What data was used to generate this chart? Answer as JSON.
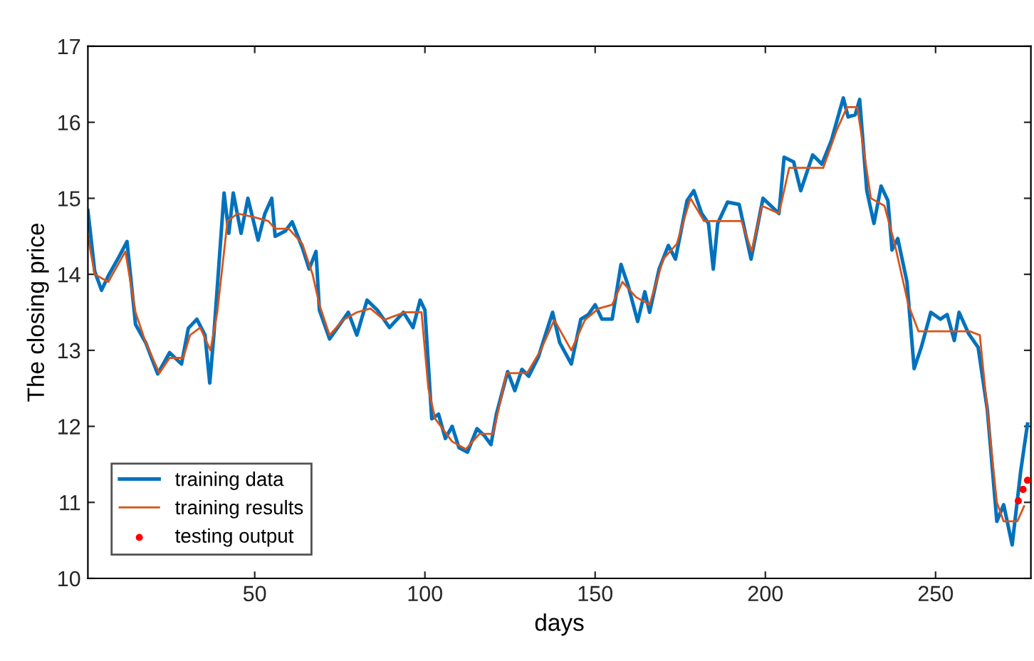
{
  "chart_data": {
    "type": "line",
    "xlabel": "days",
    "ylabel": "The closing price",
    "xlim": [
      1,
      278
    ],
    "ylim": [
      10,
      17
    ],
    "xticks": [
      50,
      100,
      150,
      200,
      250
    ],
    "yticks": [
      10,
      11,
      12,
      13,
      14,
      15,
      16,
      17
    ],
    "grid": false,
    "legend": "bottom left",
    "series": [
      {
        "name": "training data",
        "color": "#0072bd",
        "x": [
          1,
          3,
          5,
          7,
          10,
          12.5,
          15,
          18,
          21.5,
          25,
          28.5,
          30.5,
          33,
          35.4,
          36.8,
          38,
          41,
          42.4,
          43.7,
          46,
          48,
          51,
          53,
          55,
          56,
          59,
          61,
          64,
          66,
          68,
          69,
          72,
          75,
          77.5,
          80,
          83,
          86,
          89.6,
          93.7,
          96.5,
          98.6,
          100,
          102,
          104,
          106,
          108,
          110,
          112.5,
          115.3,
          117.4,
          119.4,
          121,
          124.3,
          126.4,
          128.5,
          130.5,
          133.3,
          137.5,
          139.6,
          143,
          145.8,
          148,
          150,
          152,
          155,
          157.6,
          159.7,
          162.5,
          164.6,
          166,
          168.8,
          171.5,
          173.6,
          177,
          179,
          181.3,
          183.3,
          184.7,
          186,
          188.9,
          192.3,
          195.8,
          199.3,
          204,
          205.5,
          208.3,
          210.4,
          213.9,
          216.6,
          219.4,
          222.9,
          224.3,
          226.4,
          227.7,
          229.8,
          231.9,
          234,
          236,
          237.2,
          238.9,
          241.6,
          243.7,
          245.8,
          248.6,
          251.4,
          253.4,
          255.5,
          256.9,
          259.7,
          262.5,
          265.2,
          268,
          270,
          272.5,
          275,
          277
        ],
        "values": [
          14.84,
          14.04,
          13.79,
          13.98,
          14.22,
          14.43,
          13.34,
          13.1,
          12.69,
          12.97,
          12.82,
          13.29,
          13.41,
          13.2,
          12.57,
          13.2,
          15.07,
          14.54,
          15.07,
          14.54,
          15.0,
          14.45,
          14.8,
          15.0,
          14.5,
          14.57,
          14.69,
          14.35,
          14.07,
          14.3,
          13.53,
          13.15,
          13.34,
          13.5,
          13.2,
          13.66,
          13.53,
          13.3,
          13.5,
          13.3,
          13.66,
          13.53,
          12.1,
          12.16,
          11.84,
          12.0,
          11.72,
          11.66,
          11.97,
          11.88,
          11.76,
          12.16,
          12.72,
          12.47,
          12.75,
          12.66,
          12.91,
          13.5,
          13.1,
          12.82,
          13.41,
          13.47,
          13.6,
          13.41,
          13.41,
          14.13,
          13.85,
          13.38,
          13.77,
          13.5,
          14.07,
          14.38,
          14.2,
          14.97,
          15.1,
          14.8,
          14.67,
          14.07,
          14.67,
          14.95,
          14.92,
          14.2,
          15.0,
          14.8,
          15.54,
          15.48,
          15.1,
          15.57,
          15.45,
          15.76,
          16.32,
          16.07,
          16.1,
          16.3,
          15.1,
          14.67,
          15.16,
          14.97,
          14.32,
          14.47,
          13.9,
          12.76,
          13.04,
          13.5,
          13.41,
          13.47,
          13.13,
          13.5,
          13.22,
          13.04,
          12.22,
          10.75,
          10.97,
          10.44,
          11.41,
          12.03
        ]
      },
      {
        "name": "training results",
        "color": "#d95319",
        "x": [
          1,
          3,
          7,
          12,
          15,
          18,
          22,
          25,
          29,
          31,
          34,
          37,
          39,
          42,
          45,
          50,
          54,
          56,
          60,
          64,
          67,
          69,
          72,
          76,
          80,
          84,
          88,
          94,
          99,
          101,
          103,
          108,
          112,
          116,
          120,
          124,
          130,
          134,
          138,
          143,
          147,
          151,
          155,
          158,
          162,
          166,
          170,
          174,
          178,
          182,
          193,
          196,
          199,
          204,
          207,
          217,
          221,
          224,
          227,
          229,
          231,
          235,
          238,
          242,
          245,
          260,
          263,
          265,
          268,
          270,
          274,
          276
        ],
        "values": [
          14.5,
          14.0,
          13.9,
          14.3,
          13.5,
          13.1,
          12.7,
          12.9,
          12.9,
          13.2,
          13.3,
          13.0,
          13.5,
          14.7,
          14.8,
          14.75,
          14.7,
          14.6,
          14.6,
          14.4,
          14.0,
          13.6,
          13.2,
          13.4,
          13.5,
          13.55,
          13.4,
          13.5,
          13.5,
          12.5,
          12.1,
          11.8,
          11.7,
          11.9,
          11.9,
          12.7,
          12.7,
          13.0,
          13.4,
          13.0,
          13.4,
          13.55,
          13.6,
          13.9,
          13.7,
          13.6,
          14.2,
          14.4,
          15.0,
          14.7,
          14.7,
          14.3,
          14.9,
          14.8,
          15.4,
          15.4,
          15.9,
          16.2,
          16.2,
          15.6,
          15.0,
          14.9,
          14.4,
          13.6,
          13.25,
          13.25,
          13.2,
          12.3,
          11.0,
          10.75,
          10.75,
          10.95
        ]
      },
      {
        "name": "testing output",
        "color": "#ff0000",
        "type": "scatter",
        "marker": "circle",
        "x": [
          274.3,
          275.7,
          277
        ],
        "values": [
          11.02,
          11.17,
          11.29
        ]
      }
    ]
  }
}
